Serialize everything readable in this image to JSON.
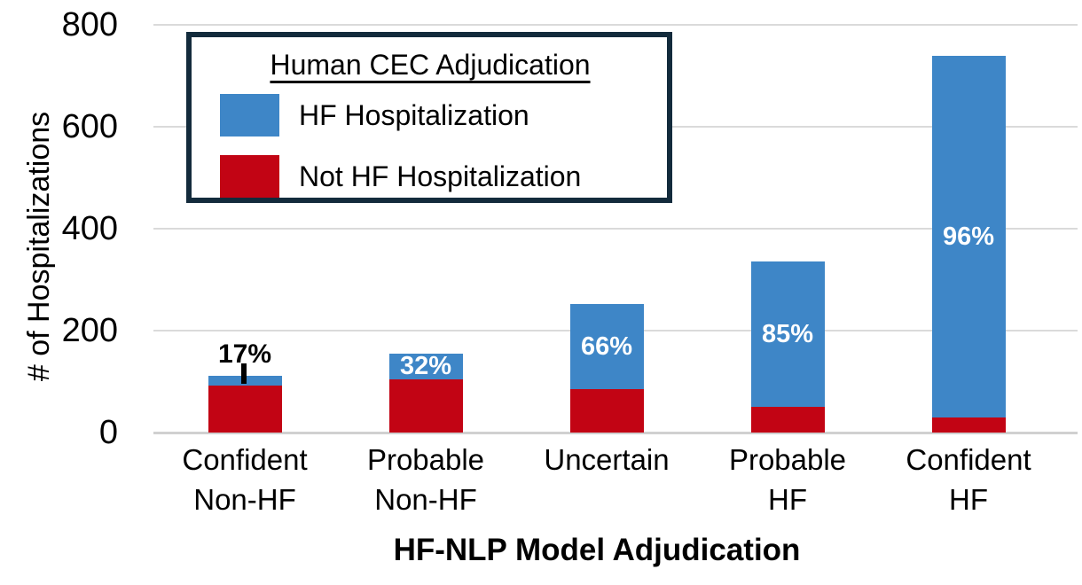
{
  "chart_data": {
    "type": "bar",
    "stacked": true,
    "xlabel": "HF-NLP Model Adjudication",
    "ylabel": "# of Hospitalizations",
    "categories": [
      "Confident\nNon-HF",
      "Probable\nNon-HF",
      "Uncertain",
      "Probable\nHF",
      "Confident\nHF"
    ],
    "series": [
      {
        "name": "Not HF Hospitalization",
        "color": "#c20414",
        "values": [
          93,
          105,
          85,
          50,
          30
        ]
      },
      {
        "name": "HF Hospitalization",
        "color": "#3e86c7",
        "values": [
          19,
          50,
          167,
          285,
          710
        ]
      }
    ],
    "totals": [
      112,
      155,
      252,
      335,
      740
    ],
    "bar_labels": [
      "17%",
      "32%",
      "66%",
      "85%",
      "96%"
    ],
    "bar_label_styles": [
      "black-above-with-leader",
      "white-inside",
      "white-inside",
      "white-inside",
      "white-inside"
    ],
    "y_ticks": [
      0,
      200,
      400,
      600,
      800
    ],
    "ylim": [
      0,
      800
    ],
    "grid": true,
    "legend": {
      "title": "Human CEC Adjudication",
      "position": "top-left-inside",
      "entries": [
        {
          "label": "HF Hospitalization",
          "color": "#3e86c7"
        },
        {
          "label": "Not HF Hospitalization",
          "color": "#c20414"
        }
      ]
    }
  },
  "colors": {
    "hf_blue": "#3e86c7",
    "not_hf_red": "#c20414",
    "legend_border": "#132b3c",
    "gridline": "#dadada",
    "text": "#000000",
    "background": "#ffffff"
  }
}
